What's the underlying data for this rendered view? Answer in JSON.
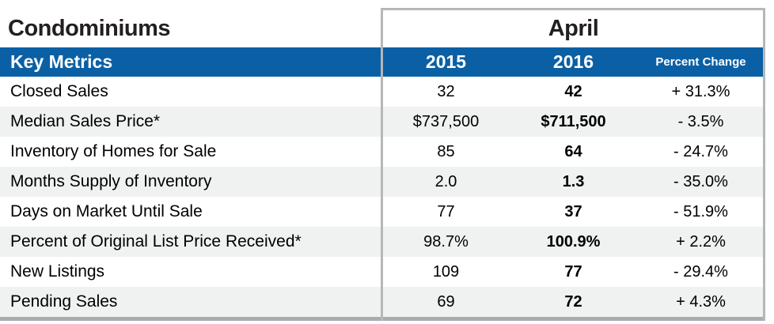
{
  "title": "Condominiums",
  "period": "April",
  "header": {
    "metrics_label": "Key Metrics",
    "col_2015": "2015",
    "col_2016": "2016",
    "percent_change": "Percent Change"
  },
  "rows": [
    {
      "label": "Closed Sales",
      "y2015": "32",
      "y2016": "42",
      "change": "+ 31.3%"
    },
    {
      "label": "Median Sales Price*",
      "y2015": "$737,500",
      "y2016": "$711,500",
      "change": "- 3.5%"
    },
    {
      "label": "Inventory of Homes for Sale",
      "y2015": "85",
      "y2016": "64",
      "change": "- 24.7%"
    },
    {
      "label": "Months Supply of Inventory",
      "y2015": "2.0",
      "y2016": "1.3",
      "change": "- 35.0%"
    },
    {
      "label": "Days on Market Until Sale",
      "y2015": "77",
      "y2016": "37",
      "change": "- 51.9%"
    },
    {
      "label": "Percent of Original List Price Received*",
      "y2015": "98.7%",
      "y2016": "100.9%",
      "change": "+ 2.2%"
    },
    {
      "label": "New Listings",
      "y2015": "109",
      "y2016": "77",
      "change": "- 29.4%"
    },
    {
      "label": "Pending Sales",
      "y2015": "69",
      "y2016": "72",
      "change": "+ 4.3%"
    }
  ],
  "colors": {
    "header_blue": "#0b60a5",
    "row_stripe": "#f0f1f1",
    "panel_frame": "#b5b7b9",
    "bottom_bar": "#aaacaf",
    "title_ink": "#231f20"
  }
}
